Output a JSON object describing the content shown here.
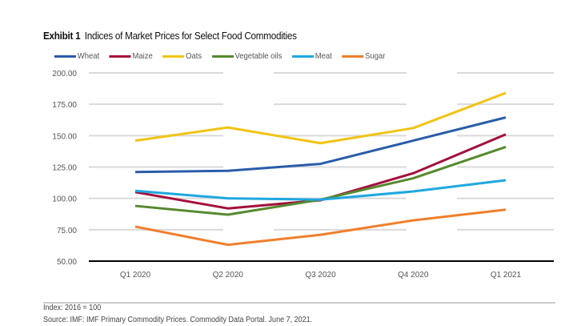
{
  "chart_data": {
    "type": "line",
    "title_prefix": "Exhibit 1",
    "title": "Indices of Market Prices for Select Food Commodities",
    "categories": [
      "Q1 2020",
      "Q2 2020",
      "Q3 2020",
      "Q4 2020",
      "Q1 2021"
    ],
    "yticks": [
      "50.00",
      "75.00",
      "100.00",
      "125.00",
      "150.00",
      "175.00",
      "200.00"
    ],
    "ylim": [
      50,
      200
    ],
    "legend_position": "top-left",
    "series": [
      {
        "name": "Wheat",
        "color": "#2a5caa",
        "values": [
          121,
          122,
          127.5,
          146,
          164.5
        ]
      },
      {
        "name": "Maize",
        "color": "#a3103c",
        "values": [
          105,
          92,
          98.5,
          120,
          151
        ]
      },
      {
        "name": "Oats",
        "color": "#f2c314",
        "values": [
          146,
          156.5,
          144,
          156,
          184
        ]
      },
      {
        "name": "Vegetable oils",
        "color": "#56892e",
        "values": [
          94,
          87,
          99,
          116,
          141
        ]
      },
      {
        "name": "Meat",
        "color": "#1ea8e0",
        "values": [
          106,
          100,
          99,
          105.5,
          114.5
        ]
      },
      {
        "name": "Sugar",
        "color": "#f07f2c",
        "values": [
          77.5,
          63,
          71,
          82.5,
          91
        ]
      }
    ]
  },
  "footer": {
    "note": "Index: 2016 = 100",
    "source": "Source: IMF: IMF Primary Commodity Prices. Commodity Data Portal. June 7, 2021."
  }
}
